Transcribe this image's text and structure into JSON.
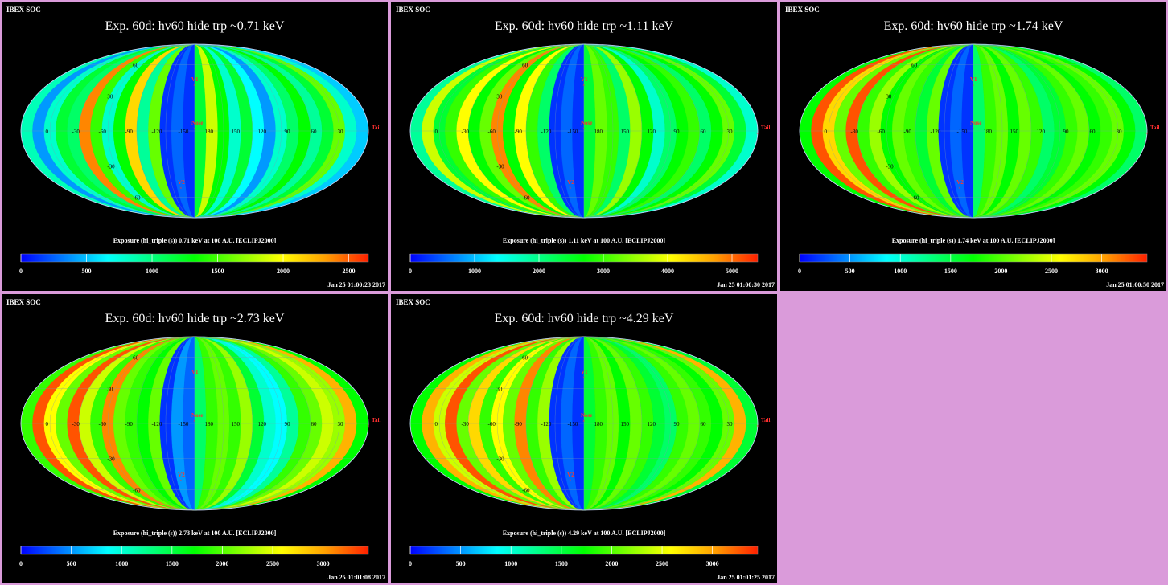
{
  "colors": {
    "background": "#da9bda",
    "panel_bg": "#000000",
    "text": "#ffffff",
    "marker": "#ff3030",
    "colormap": [
      "#0000ff",
      "#0080ff",
      "#00ffff",
      "#00ff80",
      "#00ff00",
      "#80ff00",
      "#ffff00",
      "#ffa000",
      "#ff2000"
    ]
  },
  "chart_data": [
    {
      "type": "heatmap",
      "projection": "mollweide",
      "source_label": "IBEX SOC",
      "title": "Exp.   60d: hv60 hide trp ~0.71 keV",
      "colorbar_label": "Exposure (hi_triple (s))  0.71 keV at 100 A.U. [ECLIPJ2000]",
      "colorbar_range": [
        0,
        2650
      ],
      "colorbar_ticks": [
        "0",
        "500",
        "1000",
        "1500",
        "2000",
        "2500"
      ],
      "timestamp": "Jan 25 01:00:23 2017",
      "lat_labels": [
        "60",
        "30",
        "0",
        "-30",
        "-60"
      ],
      "lon_labels": [
        "0",
        "-30",
        "-60",
        "-90",
        "-120",
        "-150",
        "180",
        "150",
        "120",
        "90",
        "60",
        "30"
      ],
      "markers": [
        "V1",
        "Nose",
        "V2",
        "Tail"
      ],
      "stripes": [
        0.32,
        0.15,
        0.3,
        0.45,
        0.4,
        0.9,
        0.55,
        0.3,
        0.5,
        0.8,
        0.35,
        0.6,
        0.05,
        0.1,
        0.05,
        0.45,
        0.7,
        0.5,
        0.3,
        0.45,
        0.25,
        0.15,
        0.3,
        0.4,
        0.5,
        0.35,
        0.45,
        0.6,
        0.3,
        0.2
      ]
    },
    {
      "type": "heatmap",
      "projection": "mollweide",
      "source_label": "IBEX SOC",
      "title": "Exp.   60d: hv60 hide trp ~1.11 keV",
      "colorbar_label": "Exposure (hi_triple (s))  1.11 keV at 100 A.U. [ECLIPJ2000]",
      "colorbar_range": [
        0,
        5400
      ],
      "colorbar_ticks": [
        "0",
        "1000",
        "2000",
        "3000",
        "4000",
        "5000"
      ],
      "timestamp": "Jan 25 01:00:30 2017",
      "lat_labels": [
        "60",
        "30",
        "0",
        "-30",
        "-60"
      ],
      "lon_labels": [
        "0",
        "-30",
        "-60",
        "-90",
        "-120",
        "-150",
        "180",
        "150",
        "120",
        "90",
        "60",
        "30"
      ],
      "markers": [
        "V1",
        "Nose",
        "V2",
        "Tail"
      ],
      "stripes": [
        0.35,
        0.7,
        0.45,
        0.55,
        0.75,
        0.5,
        0.6,
        0.9,
        0.5,
        0.75,
        0.55,
        0.4,
        0.05,
        0.1,
        0.05,
        0.45,
        0.6,
        0.55,
        0.4,
        0.65,
        0.5,
        0.3,
        0.4,
        0.5,
        0.55,
        0.4,
        0.5,
        0.6,
        0.45,
        0.3
      ]
    },
    {
      "type": "heatmap",
      "projection": "mollweide",
      "source_label": "IBEX SOC",
      "title": "Exp.   60d: hv60 hide trp ~1.74 keV",
      "colorbar_label": "Exposure (hi_triple (s))  1.74 keV at 100 A.U. [ECLIPJ2000]",
      "colorbar_range": [
        0,
        3450
      ],
      "colorbar_ticks": [
        "0",
        "500",
        "1000",
        "1500",
        "2000",
        "2500",
        "3000"
      ],
      "timestamp": "Jan 25 01:00:50 2017",
      "lat_labels": [
        "60",
        "30",
        "0",
        "-30",
        "-60"
      ],
      "lon_labels": [
        "0",
        "-30",
        "-60",
        "-90",
        "-120",
        "-150",
        "180",
        "150",
        "120",
        "90",
        "60",
        "30"
      ],
      "markers": [
        "V1",
        "Nose",
        "V2",
        "Tail"
      ],
      "stripes": [
        0.5,
        0.95,
        0.8,
        0.6,
        0.95,
        0.55,
        0.65,
        0.5,
        0.6,
        0.55,
        0.45,
        0.6,
        0.05,
        0.1,
        0.05,
        0.4,
        0.55,
        0.6,
        0.5,
        0.6,
        0.55,
        0.4,
        0.45,
        0.55,
        0.6,
        0.5,
        0.55,
        0.6,
        0.5,
        0.4
      ]
    },
    {
      "type": "heatmap",
      "projection": "mollweide",
      "source_label": "IBEX SOC",
      "title": "Exp.   60d: hv60 hide trp ~2.73 keV",
      "colorbar_label": "Exposure (hi_triple (s))  2.73 keV at 100 A.U. [ECLIPJ2000]",
      "colorbar_range": [
        0,
        3450
      ],
      "colorbar_ticks": [
        "0",
        "500",
        "1000",
        "1500",
        "2000",
        "2500",
        "3000"
      ],
      "timestamp": "Jan 25 01:01:08 2017",
      "lat_labels": [
        "60",
        "30",
        "0",
        "-30",
        "-60"
      ],
      "lon_labels": [
        "0",
        "-30",
        "-60",
        "-90",
        "-120",
        "-150",
        "180",
        "150",
        "120",
        "90",
        "60",
        "30"
      ],
      "markers": [
        "V1",
        "Nose",
        "V2",
        "Tail"
      ],
      "stripes": [
        0.55,
        0.95,
        0.75,
        0.6,
        0.95,
        0.7,
        0.55,
        0.9,
        0.6,
        0.55,
        0.5,
        0.6,
        0.05,
        0.15,
        0.1,
        0.4,
        0.55,
        0.6,
        0.55,
        0.65,
        0.45,
        0.3,
        0.25,
        0.35,
        0.55,
        0.6,
        0.7,
        0.65,
        0.85,
        0.5
      ]
    },
    {
      "type": "heatmap",
      "projection": "mollweide",
      "source_label": "IBEX SOC",
      "title": "Exp.   60d: hv60 hide trp ~4.29 keV",
      "colorbar_label": "Exposure (hi_triple (s))  4.29 keV at 100 A.U. [ECLIPJ2000]",
      "colorbar_range": [
        0,
        3450
      ],
      "colorbar_ticks": [
        "0",
        "500",
        "1000",
        "1500",
        "2000",
        "2500",
        "3000"
      ],
      "timestamp": "Jan 25 01:01:25 2017",
      "lat_labels": [
        "60",
        "30",
        "0",
        "-30",
        "-60"
      ],
      "lon_labels": [
        "0",
        "-30",
        "-60",
        "-90",
        "-120",
        "-150",
        "180",
        "150",
        "120",
        "90",
        "60",
        "30"
      ],
      "markers": [
        "V1",
        "Nose",
        "V2",
        "Tail"
      ],
      "stripes": [
        0.5,
        0.85,
        0.7,
        0.95,
        0.6,
        0.8,
        0.55,
        0.75,
        0.6,
        0.9,
        0.55,
        0.65,
        0.05,
        0.1,
        0.05,
        0.45,
        0.55,
        0.6,
        0.5,
        0.6,
        0.55,
        0.45,
        0.4,
        0.55,
        0.6,
        0.55,
        0.5,
        0.6,
        0.85,
        0.45
      ]
    }
  ]
}
